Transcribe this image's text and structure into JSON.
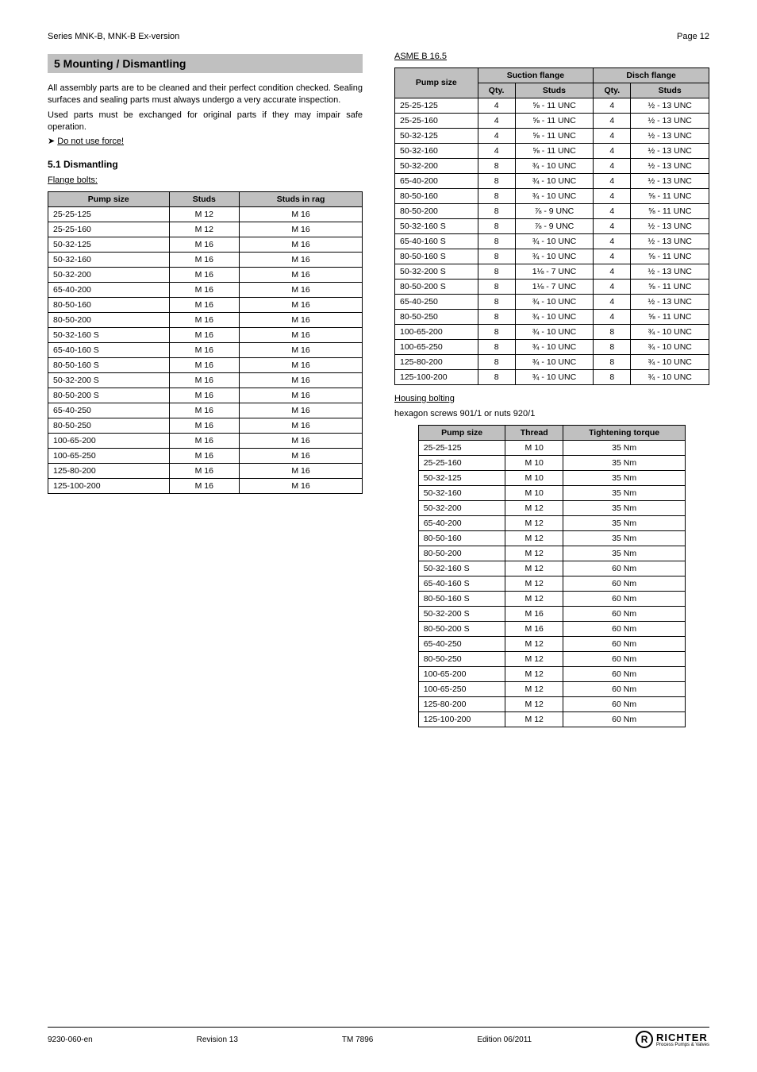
{
  "topbar": {
    "left": "Series MNK-B, MNK-B Ex-version",
    "right": "Page 12"
  },
  "section5": {
    "heading": "5    Mounting / Dismantling",
    "para1": "All assembly parts are to be cleaned and their perfect condition checked. Sealing surfaces and sealing parts must always undergo a very accurate inspection.",
    "para2": "Used parts must be exchanged for original parts if they may impair safe operation.",
    "note": "Do not use force!"
  },
  "section5_1": {
    "heading": "5.1    Dismantling",
    "flange_label": "Flange bolts:",
    "table": {
      "columns": [
        "Pump size",
        "Studs",
        "Studs in rag"
      ],
      "rows": [
        [
          "25-25-125",
          "M 12",
          "M 16"
        ],
        [
          "25-25-160",
          "M 12",
          "M 16"
        ],
        [
          "50-32-125",
          "M 16",
          "M 16"
        ],
        [
          "50-32-160",
          "M 16",
          "M 16"
        ],
        [
          "50-32-200",
          "M 16",
          "M 16"
        ],
        [
          "65-40-200",
          "M 16",
          "M 16"
        ],
        [
          "80-50-160",
          "M 16",
          "M 16"
        ],
        [
          "80-50-200",
          "M 16",
          "M 16"
        ],
        [
          "50-32-160 S",
          "M 16",
          "M 16"
        ],
        [
          "65-40-160 S",
          "M 16",
          "M 16"
        ],
        [
          "80-50-160 S",
          "M 16",
          "M 16"
        ],
        [
          "50-32-200 S",
          "M 16",
          "M 16"
        ],
        [
          "80-50-200 S",
          "M 16",
          "M 16"
        ],
        [
          "65-40-250",
          "M 16",
          "M 16"
        ],
        [
          "80-50-250",
          "M 16",
          "M 16"
        ],
        [
          "100-65-200",
          "M 16",
          "M 16"
        ],
        [
          "100-65-250",
          "M 16",
          "M 16"
        ],
        [
          "125-80-200",
          "M 16",
          "M 16"
        ],
        [
          "125-100-200",
          "M 16",
          "M 16"
        ]
      ]
    }
  },
  "asme_label": "ASME B 16.5",
  "asme_table": {
    "columns": [
      "Pump size",
      "Suction flange",
      "Disch flange"
    ],
    "sub_columns_suction": [
      "Qty.",
      "Studs"
    ],
    "sub_columns_discharge": [
      "Qty.",
      "Studs"
    ],
    "rows": [
      [
        "25-25-125",
        "4",
        "⅝ - 11 UNC",
        "4",
        "½ - 13 UNC"
      ],
      [
        "25-25-160",
        "4",
        "⅝ - 11 UNC",
        "4",
        "½ - 13 UNC"
      ],
      [
        "50-32-125",
        "4",
        "⅝ - 11 UNC",
        "4",
        "½ - 13 UNC"
      ],
      [
        "50-32-160",
        "4",
        "⅝ - 11 UNC",
        "4",
        "½ - 13 UNC"
      ],
      [
        "50-32-200",
        "8",
        "¾ - 10 UNC",
        "4",
        "½ - 13 UNC"
      ],
      [
        "65-40-200",
        "8",
        "¾ - 10 UNC",
        "4",
        "½ - 13 UNC"
      ],
      [
        "80-50-160",
        "8",
        "¾ - 10 UNC",
        "4",
        "⅝ - 11 UNC"
      ],
      [
        "80-50-200",
        "8",
        "⅞ - 9 UNC",
        "4",
        "⅝ - 11 UNC"
      ],
      [
        "50-32-160 S",
        "8",
        "⅞ - 9 UNC",
        "4",
        "½ - 13 UNC"
      ],
      [
        "65-40-160 S",
        "8",
        "¾ - 10 UNC",
        "4",
        "½ - 13 UNC"
      ],
      [
        "80-50-160 S",
        "8",
        "¾ - 10 UNC",
        "4",
        "⅝ - 11 UNC"
      ],
      [
        "50-32-200 S",
        "8",
        "1⅛ - 7 UNC",
        "4",
        "½ - 13 UNC"
      ],
      [
        "80-50-200 S",
        "8",
        "1⅛ - 7 UNC",
        "4",
        "⅝ - 11 UNC"
      ],
      [
        "65-40-250",
        "8",
        "¾ - 10 UNC",
        "4",
        "½ - 13 UNC"
      ],
      [
        "80-50-250",
        "8",
        "¾ - 10 UNC",
        "4",
        "⅝ - 11 UNC"
      ],
      [
        "100-65-200",
        "8",
        "¾ - 10 UNC",
        "8",
        "¾ - 10 UNC"
      ],
      [
        "100-65-250",
        "8",
        "¾ - 10 UNC",
        "8",
        "¾ - 10 UNC"
      ],
      [
        "125-80-200",
        "8",
        "¾ - 10 UNC",
        "8",
        "¾ - 10 UNC"
      ],
      [
        "125-100-200",
        "8",
        "¾ - 10 UNC",
        "8",
        "¾ - 10 UNC"
      ]
    ]
  },
  "housing_label": "Housing bolting",
  "housing_intro": "hexagon screws 901/1 or nuts 920/1",
  "housing_table": {
    "columns": [
      "Pump size",
      "Thread",
      "Tightening torque"
    ],
    "rows": [
      [
        "25-25-125",
        "M 10",
        "35 Nm"
      ],
      [
        "25-25-160",
        "M 10",
        "35 Nm"
      ],
      [
        "50-32-125",
        "M 10",
        "35 Nm"
      ],
      [
        "50-32-160",
        "M 10",
        "35 Nm"
      ],
      [
        "50-32-200",
        "M 12",
        "35 Nm"
      ],
      [
        "65-40-200",
        "M 12",
        "35 Nm"
      ],
      [
        "80-50-160",
        "M 12",
        "35 Nm"
      ],
      [
        "80-50-200",
        "M 12",
        "35 Nm"
      ],
      [
        "50-32-160 S",
        "M 12",
        "60 Nm"
      ],
      [
        "65-40-160 S",
        "M 12",
        "60 Nm"
      ],
      [
        "80-50-160 S",
        "M 12",
        "60 Nm"
      ],
      [
        "50-32-200 S",
        "M 16",
        "60 Nm"
      ],
      [
        "80-50-200 S",
        "M 16",
        "60 Nm"
      ],
      [
        "65-40-250",
        "M 12",
        "60 Nm"
      ],
      [
        "80-50-250",
        "M 12",
        "60 Nm"
      ],
      [
        "100-65-200",
        "M 12",
        "60 Nm"
      ],
      [
        "100-65-250",
        "M 12",
        "60 Nm"
      ],
      [
        "125-80-200",
        "M 12",
        "60 Nm"
      ],
      [
        "125-100-200",
        "M 12",
        "60 Nm"
      ]
    ]
  },
  "footer": {
    "left": "9230-060-en",
    "center": "Revision 13",
    "right": "TM 7896",
    "date": "Edition 06/2011",
    "brand": "RICHTER",
    "brand_sub": "Process Pumps & Valves"
  }
}
